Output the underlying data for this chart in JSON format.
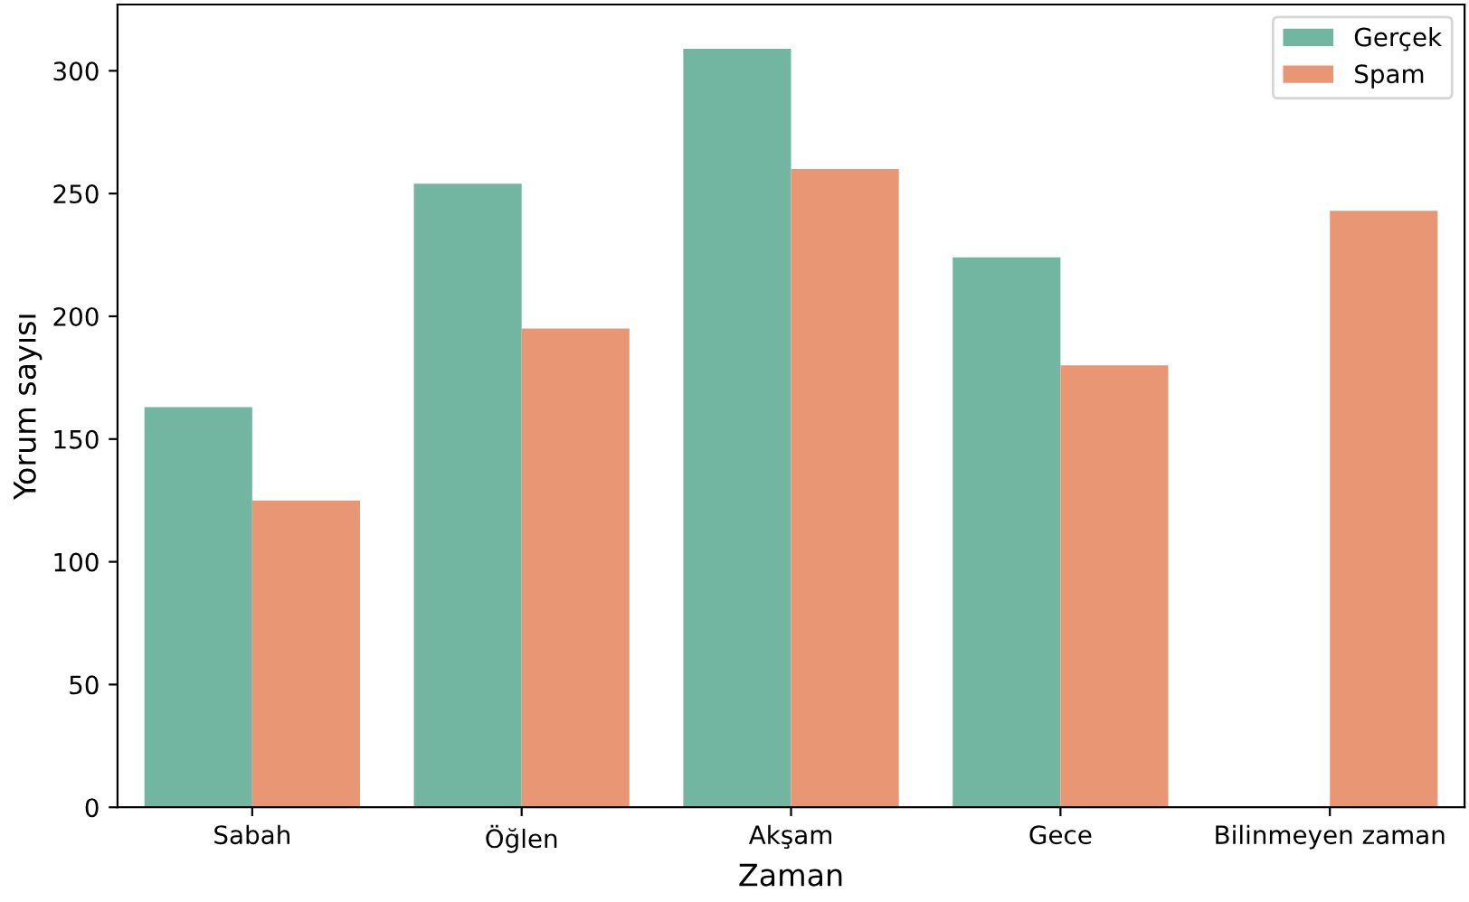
{
  "chart_data": {
    "type": "bar",
    "xlabel": "Zaman",
    "ylabel": "Yorum sayısı",
    "categories": [
      "Sabah",
      "Öğlen",
      "Akşam",
      "Gece",
      "Bilinmeyen zaman"
    ],
    "series": [
      {
        "name": "Gerçek",
        "color": "#72b6a1",
        "values": [
          163,
          254,
          309,
          224,
          null
        ]
      },
      {
        "name": "Spam",
        "color": "#e99675",
        "values": [
          125,
          195,
          260,
          180,
          243
        ]
      }
    ],
    "ylim": [
      0,
      327
    ],
    "yticks": [
      0,
      50,
      100,
      150,
      200,
      250,
      300
    ],
    "grid": false,
    "legend": "top right"
  }
}
